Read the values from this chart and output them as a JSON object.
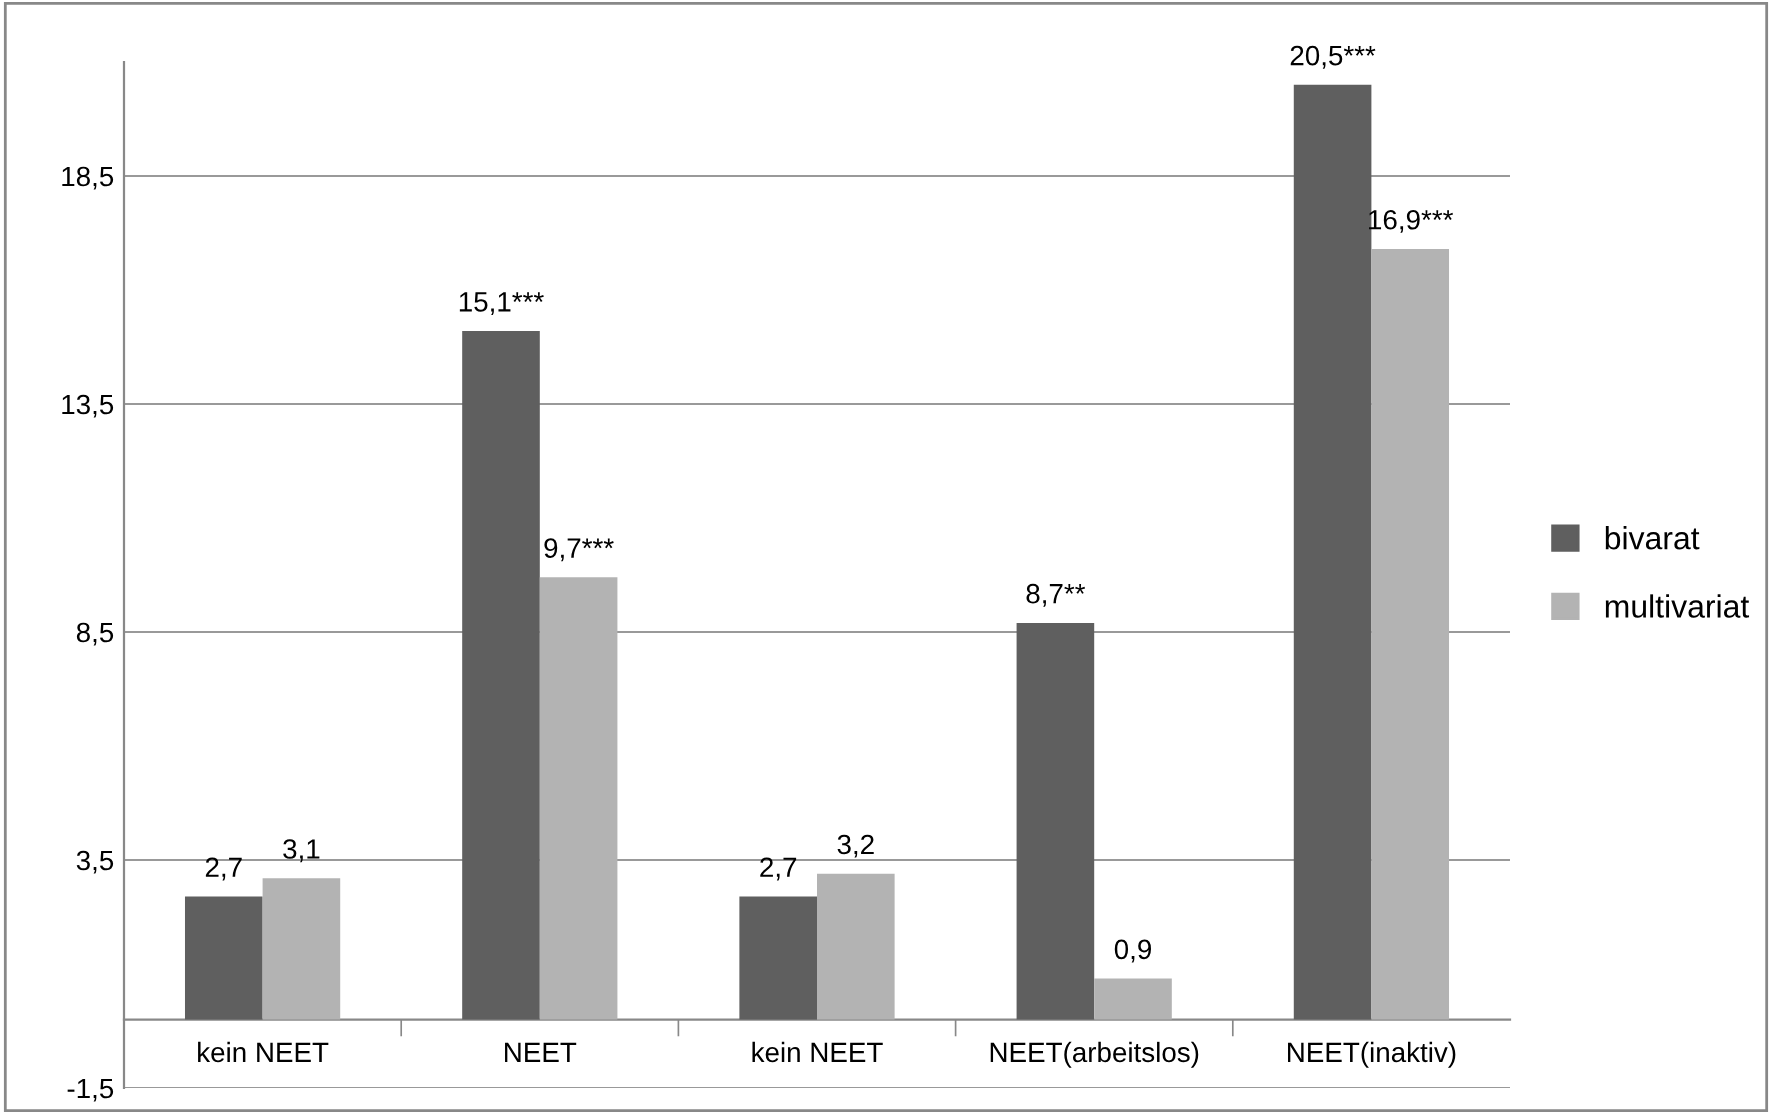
{
  "chart_data": {
    "type": "bar",
    "categories": [
      "kein NEET",
      "NEET",
      "kein NEET",
      "NEET(arbeitslos)",
      "NEET(inaktiv)"
    ],
    "series": [
      {
        "name": "bivarat",
        "color": "#5f5f5f",
        "values": [
          2.7,
          15.1,
          2.7,
          8.7,
          20.5
        ],
        "value_labels": [
          "2,7",
          "15,1***",
          "2,7",
          "8,7**",
          "20,5***"
        ]
      },
      {
        "name": "multivariat",
        "color": "#b3b3b3",
        "values": [
          3.1,
          9.7,
          3.2,
          0.9,
          16.9
        ],
        "value_labels": [
          "3,1",
          "9,7***",
          "3,2",
          "0,9",
          "16,9***"
        ]
      }
    ],
    "ylim": [
      -1.5,
      21
    ],
    "yticks": [
      {
        "value": -1.5,
        "label": "-1,5"
      },
      {
        "value": 3.5,
        "label": "3,5"
      },
      {
        "value": 8.5,
        "label": "8,5"
      },
      {
        "value": 13.5,
        "label": "13,5"
      },
      {
        "value": 18.5,
        "label": "18,5"
      }
    ],
    "grid": "y",
    "legend": "right"
  }
}
